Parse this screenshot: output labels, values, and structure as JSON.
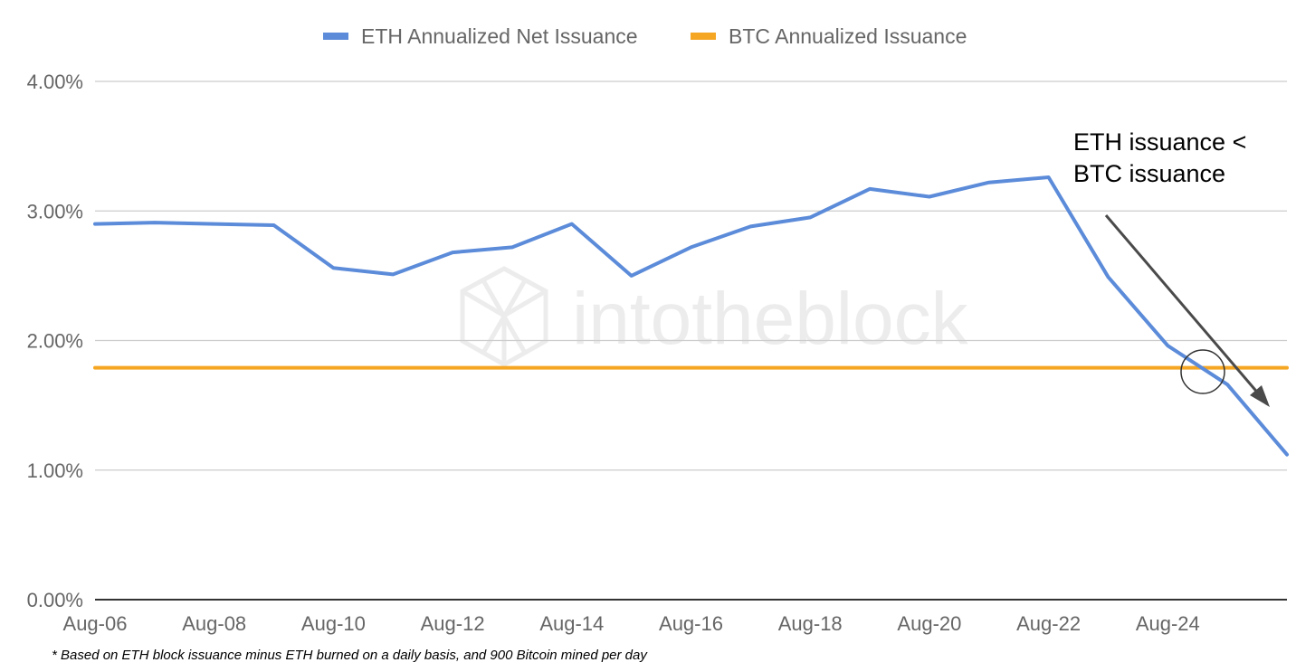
{
  "chart_data": {
    "type": "line",
    "categories": [
      "Aug-06",
      "Aug-07",
      "Aug-08",
      "Aug-09",
      "Aug-10",
      "Aug-11",
      "Aug-12",
      "Aug-13",
      "Aug-14",
      "Aug-15",
      "Aug-16",
      "Aug-17",
      "Aug-18",
      "Aug-19",
      "Aug-20",
      "Aug-21",
      "Aug-22",
      "Aug-23",
      "Aug-24",
      "Aug-25",
      "Aug-26"
    ],
    "x_tick_labels": [
      "Aug-06",
      "Aug-08",
      "Aug-10",
      "Aug-12",
      "Aug-14",
      "Aug-16",
      "Aug-18",
      "Aug-20",
      "Aug-22",
      "Aug-24"
    ],
    "y_tick_labels": [
      "0.00%",
      "1.00%",
      "2.00%",
      "3.00%",
      "4.00%"
    ],
    "ylim": [
      0,
      4
    ],
    "series": [
      {
        "name": "ETH Annualized Net Issuance",
        "color": "#5b8bd9",
        "values": [
          2.9,
          2.91,
          2.9,
          2.89,
          2.56,
          2.51,
          2.68,
          2.72,
          2.9,
          2.5,
          2.72,
          2.88,
          2.95,
          3.17,
          3.11,
          3.22,
          3.26,
          2.49,
          1.96,
          1.66,
          1.12
        ]
      },
      {
        "name": "BTC Annualized Issuance",
        "color": "#f5a623",
        "values": [
          1.79,
          1.79,
          1.79,
          1.79,
          1.79,
          1.79,
          1.79,
          1.79,
          1.79,
          1.79,
          1.79,
          1.79,
          1.79,
          1.79,
          1.79,
          1.79,
          1.79,
          1.79,
          1.79,
          1.79,
          1.79
        ]
      }
    ],
    "legend_position": "top-center",
    "grid": true,
    "annotation": {
      "lines": [
        "ETH issuance <",
        "BTC issuance"
      ],
      "crossover_marker": "circle"
    },
    "footnote": "* Based on ETH block issuance minus ETH burned on a daily basis, and 900 Bitcoin mined per day",
    "watermark": "intotheblock",
    "colors": {
      "grid": "#cccccc",
      "axis": "#333333",
      "annotation_arrow": "#4a4a4a"
    }
  }
}
